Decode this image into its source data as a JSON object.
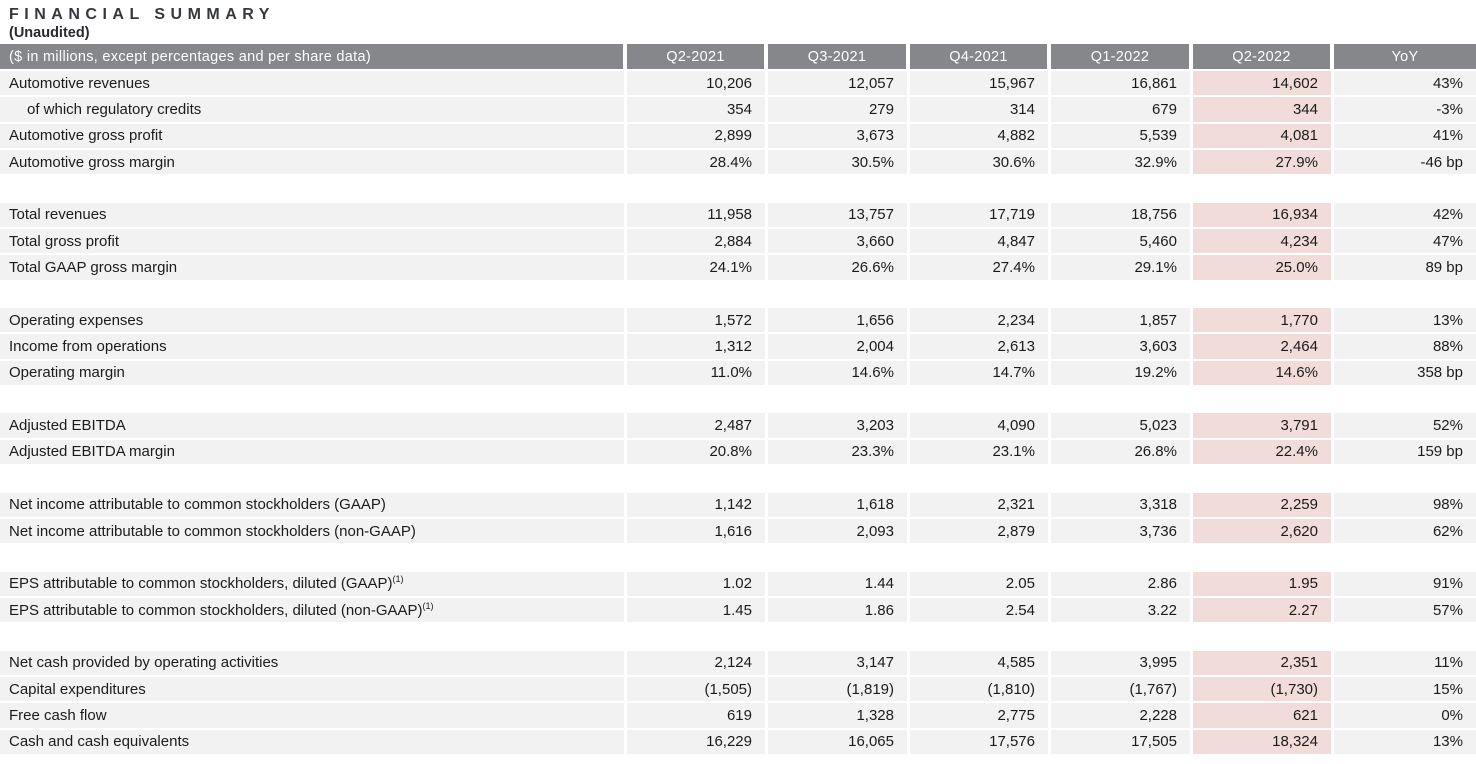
{
  "title": "FINANCIAL SUMMARY",
  "subtitle": "(Unaudited)",
  "colors": {
    "header_bg": "#85878b",
    "header_text": "#ffffff",
    "row_bg": "#f2f2f2",
    "highlight_bg": "#f2dcd9",
    "body_text": "#1b1b1b",
    "title_text": "#35383e"
  },
  "table": {
    "header": {
      "label": "($ in millions, except percentages and per share data)",
      "columns": [
        "Q2-2021",
        "Q3-2021",
        "Q4-2021",
        "Q1-2022",
        "Q2-2022",
        "YoY"
      ],
      "highlight_column": "Q2-2022"
    },
    "sections": [
      {
        "rows": [
          {
            "label": "Automotive revenues",
            "values": [
              "10,206",
              "12,057",
              "15,967",
              "16,861",
              "14,602",
              "43%"
            ]
          },
          {
            "label": "of which regulatory credits",
            "indent": true,
            "values": [
              "354",
              "279",
              "314",
              "679",
              "344",
              "-3%"
            ]
          },
          {
            "label": "Automotive gross profit",
            "values": [
              "2,899",
              "3,673",
              "4,882",
              "5,539",
              "4,081",
              "41%"
            ]
          },
          {
            "label": "Automotive gross margin",
            "values": [
              "28.4%",
              "30.5%",
              "30.6%",
              "32.9%",
              "27.9%",
              "-46 bp"
            ]
          }
        ]
      },
      {
        "rows": [
          {
            "label": "Total revenues",
            "values": [
              "11,958",
              "13,757",
              "17,719",
              "18,756",
              "16,934",
              "42%"
            ]
          },
          {
            "label": "Total gross profit",
            "values": [
              "2,884",
              "3,660",
              "4,847",
              "5,460",
              "4,234",
              "47%"
            ]
          },
          {
            "label": "Total GAAP gross margin",
            "values": [
              "24.1%",
              "26.6%",
              "27.4%",
              "29.1%",
              "25.0%",
              "89 bp"
            ]
          }
        ]
      },
      {
        "rows": [
          {
            "label": "Operating expenses",
            "values": [
              "1,572",
              "1,656",
              "2,234",
              "1,857",
              "1,770",
              "13%"
            ]
          },
          {
            "label": "Income from operations",
            "values": [
              "1,312",
              "2,004",
              "2,613",
              "3,603",
              "2,464",
              "88%"
            ]
          },
          {
            "label": "Operating margin",
            "values": [
              "11.0%",
              "14.6%",
              "14.7%",
              "19.2%",
              "14.6%",
              "358 bp"
            ]
          }
        ]
      },
      {
        "rows": [
          {
            "label": "Adjusted EBITDA",
            "values": [
              "2,487",
              "3,203",
              "4,090",
              "5,023",
              "3,791",
              "52%"
            ]
          },
          {
            "label": "Adjusted EBITDA margin",
            "values": [
              "20.8%",
              "23.3%",
              "23.1%",
              "26.8%",
              "22.4%",
              "159 bp"
            ]
          }
        ]
      },
      {
        "rows": [
          {
            "label": "Net income attributable to common stockholders (GAAP)",
            "values": [
              "1,142",
              "1,618",
              "2,321",
              "3,318",
              "2,259",
              "98%"
            ]
          },
          {
            "label": "Net income attributable to common stockholders (non-GAAP)",
            "values": [
              "1,616",
              "2,093",
              "2,879",
              "3,736",
              "2,620",
              "62%"
            ]
          }
        ]
      },
      {
        "rows": [
          {
            "label": "EPS attributable to common stockholders, diluted (GAAP)",
            "sup": "(1)",
            "values": [
              "1.02",
              "1.44",
              "2.05",
              "2.86",
              "1.95",
              "91%"
            ]
          },
          {
            "label": "EPS attributable to common stockholders, diluted (non-GAAP)",
            "sup": "(1)",
            "values": [
              "1.45",
              "1.86",
              "2.54",
              "3.22",
              "2.27",
              "57%"
            ]
          }
        ]
      },
      {
        "rows": [
          {
            "label": "Net cash provided by operating activities",
            "values": [
              "2,124",
              "3,147",
              "4,585",
              "3,995",
              "2,351",
              "11%"
            ]
          },
          {
            "label": "Capital expenditures",
            "values": [
              "(1,505)",
              "(1,819)",
              "(1,810)",
              "(1,767)",
              "(1,730)",
              "15%"
            ]
          },
          {
            "label": "Free cash flow",
            "values": [
              "619",
              "1,328",
              "2,775",
              "2,228",
              "621",
              "0%"
            ]
          },
          {
            "label": "Cash and cash equivalents",
            "values": [
              "16,229",
              "16,065",
              "17,576",
              "17,505",
              "18,324",
              "13%"
            ]
          }
        ]
      }
    ]
  }
}
